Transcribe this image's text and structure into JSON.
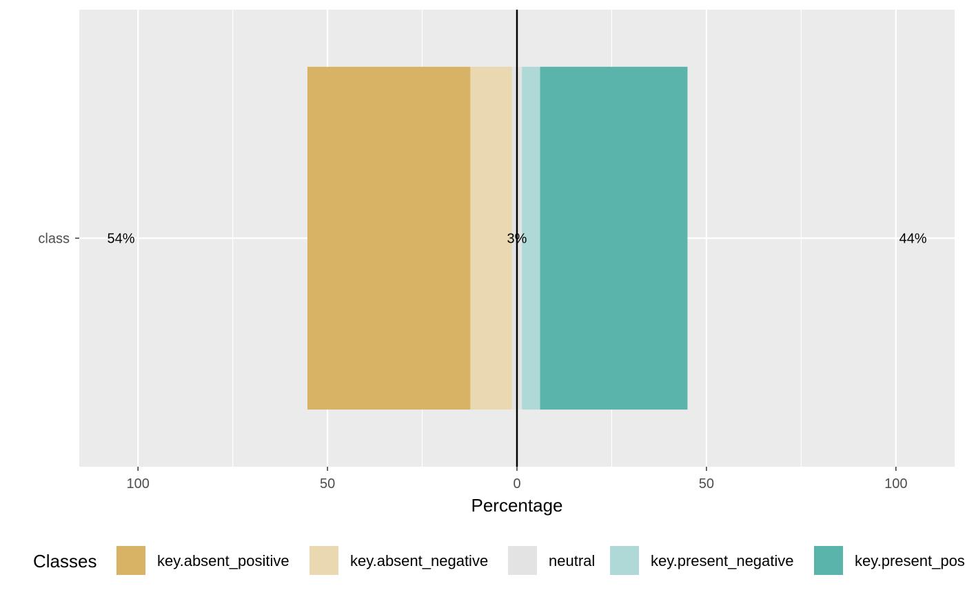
{
  "chart_data": {
    "type": "bar",
    "orientation": "horizontal-diverging",
    "categories": [
      "class"
    ],
    "series": [
      {
        "name": "key.absent_positive",
        "side": "negative",
        "values": [
          43.0
        ],
        "color": "#d8b365"
      },
      {
        "name": "key.absent_negative",
        "side": "negative",
        "values": [
          11.0
        ],
        "color": "#ead8b0"
      },
      {
        "name": "neutral",
        "side": "center",
        "values": [
          2.6
        ],
        "color": "#e3e3e3"
      },
      {
        "name": "key.present_negative",
        "side": "positive",
        "values": [
          4.8
        ],
        "color": "#afd9d6"
      },
      {
        "name": "key.present_positive",
        "side": "positive",
        "values": [
          38.9
        ],
        "color": "#5ab4ac"
      }
    ],
    "left_label": "54%",
    "center_label": "3%",
    "right_label": "44%",
    "xlabel": "Percentage",
    "ylabel": "",
    "xlim": [
      -115.5,
      115.5
    ],
    "x_ticks": [
      -100,
      -50,
      0,
      50,
      100
    ],
    "x_tick_labels": [
      "100",
      "50",
      "0",
      "50",
      "100"
    ],
    "grid": true,
    "background": "#ebebeb",
    "legend": {
      "title": "Classes",
      "position": "bottom",
      "entries": [
        "key.absent_positive",
        "key.absent_negative",
        "neutral",
        "key.present_negative",
        "key.present_positive"
      ]
    }
  }
}
